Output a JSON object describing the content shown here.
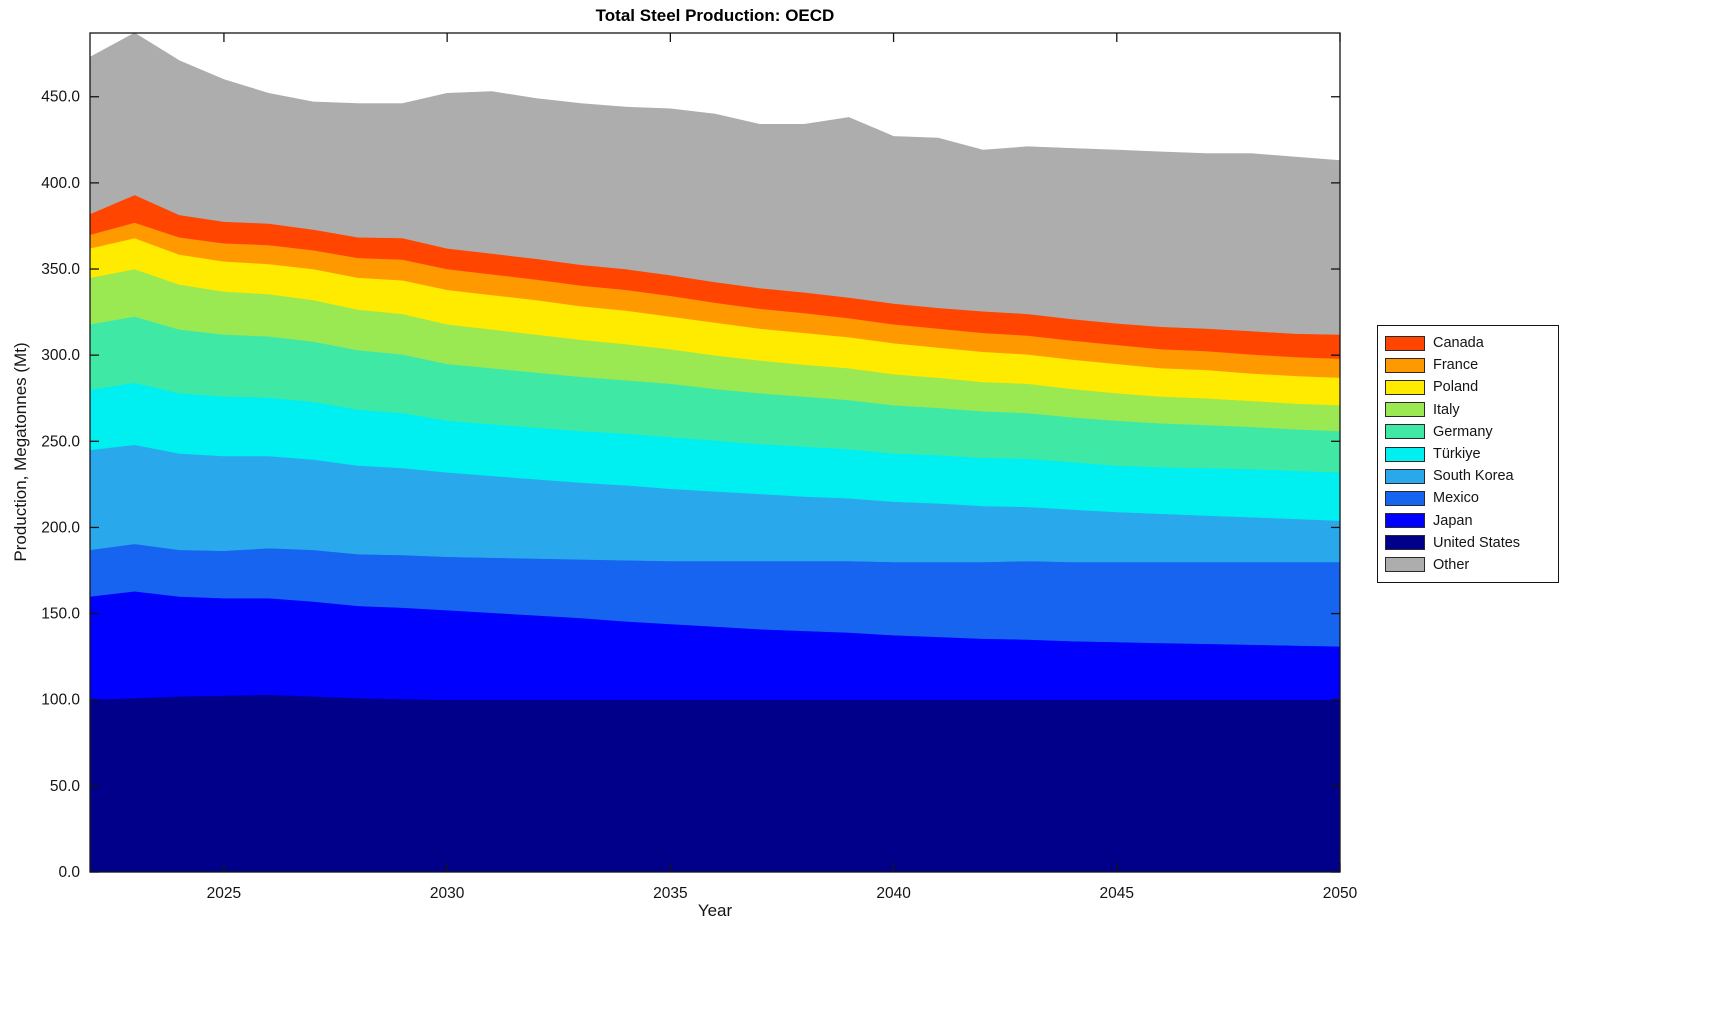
{
  "chart_data": {
    "type": "area",
    "stacked": true,
    "title": "Total Steel Production: OECD",
    "xlabel": "Year",
    "ylabel": "Production, Megatonnes (Mt)",
    "x": [
      2022,
      2023,
      2024,
      2025,
      2026,
      2027,
      2028,
      2029,
      2030,
      2031,
      2032,
      2033,
      2034,
      2035,
      2036,
      2037,
      2038,
      2039,
      2040,
      2041,
      2042,
      2043,
      2044,
      2045,
      2046,
      2047,
      2048,
      2049,
      2050
    ],
    "xlim": [
      2022,
      2050
    ],
    "ylim": [
      0,
      487
    ],
    "grid": false,
    "x_ticks": {
      "values": [
        2025,
        2030,
        2035,
        2040,
        2045,
        2050
      ],
      "labels": [
        "2025",
        "2030",
        "2035",
        "2040",
        "2045",
        "2050"
      ]
    },
    "y_ticks": {
      "values": [
        0,
        50,
        100,
        150,
        200,
        250,
        300,
        350,
        400,
        450
      ],
      "labels": [
        "0.0",
        "50.0",
        "100.0",
        "150.0",
        "200.0",
        "250.0",
        "300.0",
        "350.0",
        "400.0",
        "450.0"
      ]
    },
    "series": [
      {
        "id": "united-states",
        "name": "United States",
        "color": "#00008B",
        "values": [
          100,
          101,
          102,
          102.5,
          103,
          102,
          101,
          100.5,
          100,
          100,
          100,
          100,
          100,
          100,
          100,
          100,
          100,
          100,
          100,
          100,
          100,
          100,
          100,
          100,
          100,
          100,
          100,
          100,
          100
        ]
      },
      {
        "id": "japan",
        "name": "Japan",
        "color": "#0000FF",
        "values": [
          60,
          62,
          58,
          56.5,
          56,
          55,
          53.5,
          53,
          52,
          50.5,
          49,
          47.5,
          45.5,
          44,
          42.5,
          41,
          40,
          39,
          37.5,
          36.5,
          35.5,
          35,
          34,
          33.5,
          33,
          32.5,
          32,
          31.5,
          31
        ]
      },
      {
        "id": "mexico",
        "name": "Mexico",
        "color": "#1664F0",
        "values": [
          27,
          27.5,
          27,
          27.5,
          29,
          30,
          30,
          30.5,
          31,
          32,
          33,
          34,
          35.5,
          36.5,
          38,
          39.5,
          40.5,
          41.5,
          42.5,
          43.5,
          44.5,
          45.5,
          46,
          46.5,
          47,
          47.5,
          48,
          48.5,
          49
        ]
      },
      {
        "id": "south-korea",
        "name": "South Korea",
        "color": "#29A9EC",
        "values": [
          58,
          57.5,
          56,
          55,
          53.5,
          52.5,
          51.5,
          50.5,
          49,
          47.5,
          46,
          44.5,
          43.5,
          42,
          40.5,
          39,
          37.5,
          36.5,
          35,
          34,
          32.5,
          31.5,
          30.5,
          29,
          28,
          27,
          26,
          25,
          24
        ]
      },
      {
        "id": "turkiye",
        "name": "Türkiye",
        "color": "#00EFF0",
        "values": [
          35,
          36,
          35,
          34.5,
          34,
          33.5,
          32.5,
          32,
          30,
          30,
          30,
          30,
          30,
          30,
          29.5,
          29,
          29,
          28.5,
          28,
          28,
          28,
          28,
          27.5,
          27,
          27,
          27.5,
          28,
          28,
          28
        ]
      },
      {
        "id": "germany",
        "name": "Germany",
        "color": "#3FE9A5",
        "values": [
          38,
          38.5,
          37,
          36,
          35.5,
          35,
          34.5,
          34,
          33,
          32.5,
          32,
          31.5,
          31,
          31,
          30,
          29.5,
          29,
          28.5,
          28,
          27.5,
          27,
          26.5,
          26,
          26,
          25.5,
          25,
          24.5,
          24,
          24
        ]
      },
      {
        "id": "italy",
        "name": "Italy",
        "color": "#9BE952",
        "values": [
          27,
          27.5,
          26,
          25,
          24.5,
          24,
          23.5,
          23.5,
          23,
          22.5,
          22,
          21.5,
          21,
          20,
          19.5,
          19,
          18.5,
          18.5,
          18,
          17.5,
          17,
          17,
          16.5,
          16,
          15.5,
          15.5,
          15,
          15,
          15
        ]
      },
      {
        "id": "poland",
        "name": "Poland",
        "color": "#FFEB00",
        "values": [
          17,
          18,
          17.5,
          17.5,
          17.5,
          18,
          18.5,
          19.5,
          20,
          20,
          20,
          19.5,
          19.5,
          19,
          19,
          18.5,
          18.5,
          18,
          18,
          17.5,
          17.5,
          17,
          17,
          17,
          16.5,
          16.5,
          16,
          16,
          16
        ]
      },
      {
        "id": "france",
        "name": "France",
        "color": "#FF9900",
        "values": [
          8,
          9,
          10,
          10.5,
          11,
          11,
          11.5,
          12,
          12,
          12,
          12,
          12,
          12,
          12,
          11.5,
          11.5,
          11.5,
          11,
          11,
          11,
          11,
          11,
          11,
          11,
          11,
          11,
          11,
          11,
          11
        ]
      },
      {
        "id": "canada",
        "name": "Canada",
        "color": "#FF4500",
        "values": [
          12,
          16,
          13,
          12.5,
          12.5,
          12,
          12,
          12.5,
          12,
          12,
          12,
          12,
          12,
          12,
          12,
          12,
          12,
          12,
          12,
          12,
          12.5,
          12.5,
          12.5,
          12.5,
          13,
          13,
          13.5,
          13.5,
          14
        ]
      },
      {
        "id": "other",
        "name": "Other",
        "color": "#ADADAD",
        "values": [
          91,
          94,
          89.5,
          82.5,
          75.5,
          74,
          77.5,
          78,
          90,
          94,
          93,
          93.5,
          94,
          96.5,
          97.5,
          95,
          97.5,
          104.5,
          97,
          98.5,
          93.5,
          97,
          99,
          100.5,
          101.5,
          101.5,
          103,
          102.5,
          101
        ]
      }
    ],
    "legend": {
      "position": "right-outside",
      "order_top_to_bottom": [
        "Canada",
        "France",
        "Poland",
        "Italy",
        "Germany",
        "Türkiye",
        "South Korea",
        "Mexico",
        "Japan",
        "United States",
        "Other"
      ]
    }
  }
}
